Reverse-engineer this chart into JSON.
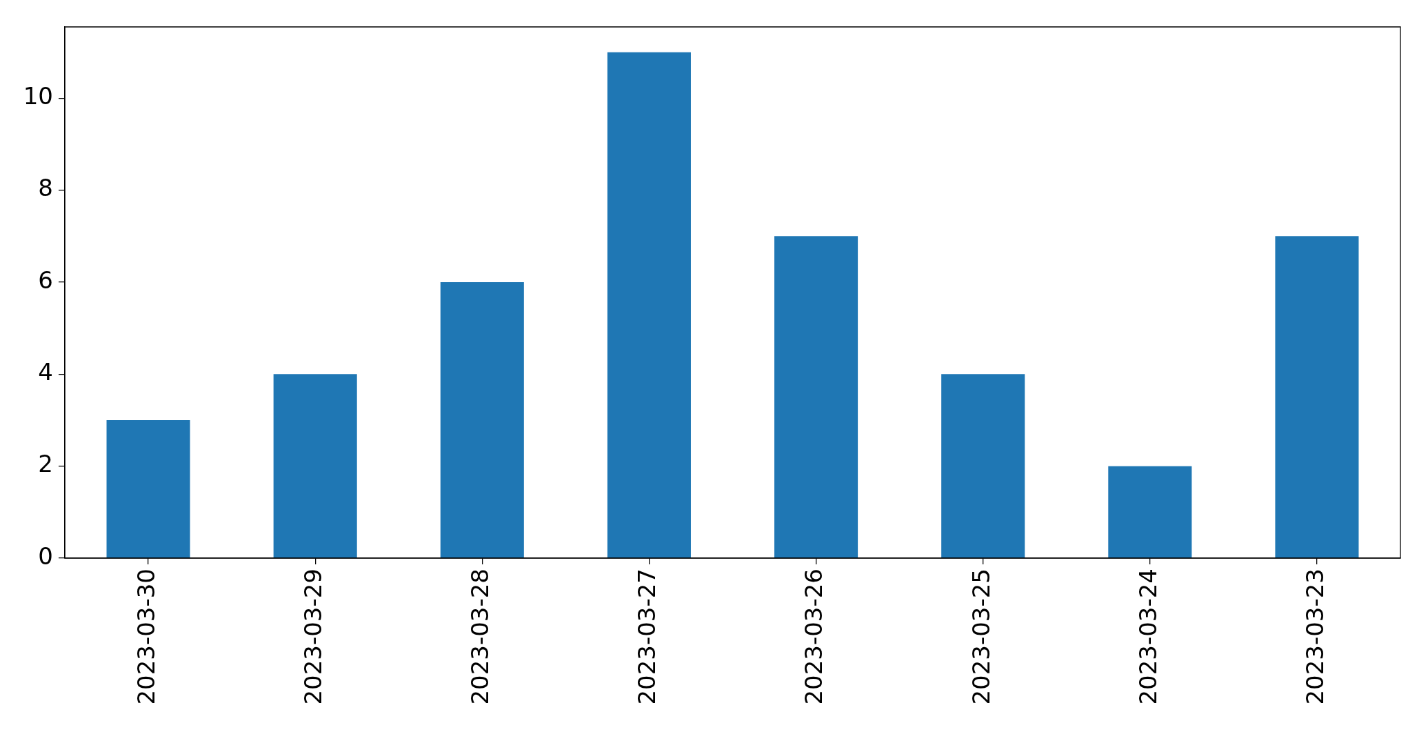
{
  "chart_data": {
    "type": "bar",
    "categories": [
      "2023-03-30",
      "2023-03-29",
      "2023-03-28",
      "2023-03-27",
      "2023-03-26",
      "2023-03-25",
      "2023-03-24",
      "2023-03-23"
    ],
    "values": [
      3,
      4,
      6,
      11,
      7,
      4,
      2,
      7
    ],
    "color": "#1f77b4",
    "ylim": [
      0,
      11.55
    ],
    "yticks": [
      0,
      2,
      4,
      6,
      8,
      10
    ]
  }
}
